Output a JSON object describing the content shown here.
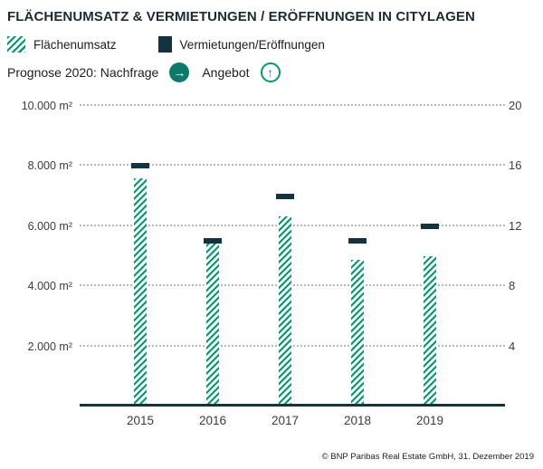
{
  "title": "FLÄCHENUMSATZ & VERMIETUNGEN / ERÖFFNUNGEN IN CITYLAGEN",
  "legend": {
    "items": [
      {
        "label": "Flächenumsatz",
        "swatch": "green-hatched"
      },
      {
        "label": "Vermietungen/Eröffnungen",
        "swatch": "dark-solid"
      }
    ]
  },
  "prognose": {
    "nachfrage_label": "Prognose 2020: Nachfrage",
    "nachfrage_icon": "arrow-right-circle",
    "angebot_label": "Angebot",
    "angebot_icon": "arrow-up-circle"
  },
  "footer": {
    "copyright": "© BNP Paribas Real Estate GmbH, 31. Dezember 2019"
  },
  "colors": {
    "green": "#009A6C",
    "dark_navy": "#15333F",
    "teal_icon": "#0B7A6B",
    "grid_gray": "#B9B9B9"
  },
  "chart_data": {
    "type": "bar",
    "title": "Flächenumsatz & Vermietungen / Eröffnungen in Citylagen",
    "categories": [
      "2015",
      "2016",
      "2017",
      "2018",
      "2019"
    ],
    "series": [
      {
        "name": "Flächenumsatz",
        "type": "bar",
        "axis": "left",
        "unit": "m²",
        "values": [
          7500,
          5500,
          6250,
          4800,
          4900
        ]
      },
      {
        "name": "Vermietungen/Eröffnungen",
        "type": "marker",
        "axis": "right",
        "unit": "count",
        "values": [
          16,
          11,
          14,
          11,
          12
        ]
      }
    ],
    "left_axis": {
      "label": "m²",
      "min": 0,
      "max": 10000,
      "ticks": [
        {
          "value": 2000,
          "label": "2.000 m²"
        },
        {
          "value": 4000,
          "label": "4.000 m²"
        },
        {
          "value": 6000,
          "label": "6.000 m²"
        },
        {
          "value": 8000,
          "label": "8.000 m²"
        },
        {
          "value": 10000,
          "label": "10.000 m²"
        }
      ]
    },
    "right_axis": {
      "min": 0,
      "max": 20,
      "ticks": [
        {
          "value": 4,
          "label": "4"
        },
        {
          "value": 8,
          "label": "8"
        },
        {
          "value": 12,
          "label": "12"
        },
        {
          "value": 16,
          "label": "16"
        },
        {
          "value": 20,
          "label": "20"
        }
      ]
    },
    "grid": "dotted",
    "legend_position": "top"
  }
}
